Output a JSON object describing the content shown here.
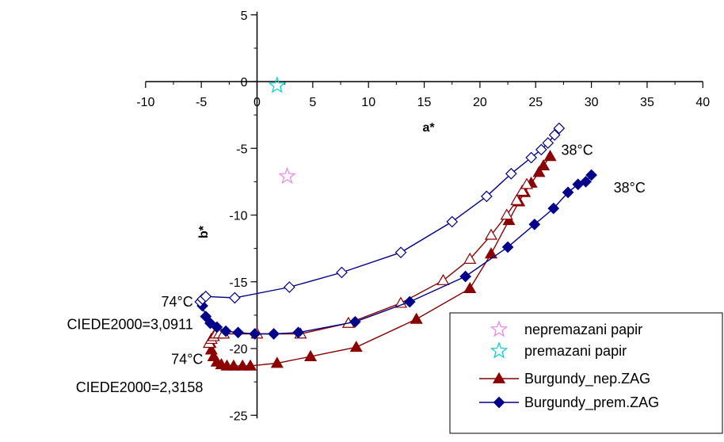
{
  "chart_data": {
    "type": "scatter",
    "xlabel": "a*",
    "ylabel": "b*",
    "xlim": [
      -10,
      40
    ],
    "ylim": [
      -25,
      5
    ],
    "x_ticks": [
      -10,
      -5,
      0,
      5,
      10,
      15,
      20,
      25,
      30,
      35,
      40
    ],
    "y_ticks": [
      5,
      0,
      -5,
      -10,
      -15,
      -20,
      -25
    ],
    "x_tick_labels": [
      "-10",
      "-5",
      "0",
      "5",
      "10",
      "15",
      "20",
      "25",
      "30",
      "35",
      "40"
    ],
    "y_tick_labels": [
      "5",
      "0",
      "-5",
      "-10",
      "-15",
      "-20",
      "-25"
    ],
    "grid": false,
    "legend_position": "bottom-right",
    "colors": {
      "burgundy_nep": "#8b0000",
      "burgundy_prem": "#00008b",
      "nepremazani": "#ee82ee",
      "premazani": "#00ced1"
    },
    "legend": [
      {
        "label": "nepremazani papir",
        "marker": "star",
        "color": "#ee82ee"
      },
      {
        "label": "premazani papir",
        "marker": "star",
        "color": "#00ced1"
      },
      {
        "label": "Burgundy_nep.ZAG",
        "marker": "triangle",
        "color": "#8b0000"
      },
      {
        "label": "Burgundy_prem.ZAG",
        "marker": "diamond",
        "color": "#00008b"
      }
    ],
    "series": [
      {
        "name": "nepremazani papir",
        "marker": "star",
        "color": "#ee82ee",
        "x": [
          2.7
        ],
        "y": [
          -7.1
        ]
      },
      {
        "name": "premazani papir",
        "marker": "star",
        "color": "#00ced1",
        "x": [
          1.8
        ],
        "y": [
          -0.3
        ]
      },
      {
        "name": "Burgundy_nep.ZAG",
        "marker": "triangle",
        "filled": true,
        "color": "#8b0000",
        "x": [
          26.3,
          25.7,
          25.3,
          24.6,
          24.0,
          23.5,
          22.6,
          21.0,
          19.1,
          14.3,
          8.9,
          4.8,
          1.8,
          -0.6,
          -1.3,
          -2.1,
          -2.7,
          -3.2,
          -3.6,
          -3.9,
          -4.1,
          -4.2
        ],
        "y": [
          -5.6,
          -6.3,
          -6.8,
          -7.6,
          -8.3,
          -9.0,
          -10.4,
          -12.9,
          -15.5,
          -17.8,
          -19.9,
          -20.6,
          -21.1,
          -21.3,
          -21.3,
          -21.3,
          -21.3,
          -21.2,
          -21.0,
          -20.6,
          -20.1,
          -19.6
        ]
      },
      {
        "name": "Burgundy_nep.ZAG (74°C)",
        "marker": "triangle",
        "filled": false,
        "color": "#8b0000",
        "x": [
          -4.3,
          -4.1,
          -3.9,
          -3.7,
          -3.4,
          -3.0,
          0.0,
          3.9,
          8.2,
          12.9,
          16.7,
          19.1,
          21.0,
          22.4,
          23.3,
          23.8,
          24.2
        ],
        "y": [
          -19.6,
          -19.3,
          -19.1,
          -18.9,
          -18.9,
          -18.9,
          -18.9,
          -18.9,
          -18.1,
          -16.6,
          -14.9,
          -13.3,
          -11.5,
          -10.0,
          -8.9,
          -8.2,
          -7.7
        ]
      },
      {
        "name": "Burgundy_prem.ZAG",
        "marker": "diamond",
        "filled": true,
        "color": "#00008b",
        "x": [
          30.0,
          29.5,
          28.8,
          27.9,
          26.6,
          24.9,
          22.5,
          18.7,
          13.7,
          8.8,
          3.7,
          1.5,
          -0.2,
          -1.7,
          -2.8,
          -3.6,
          -4.2,
          -4.6,
          -4.9
        ],
        "y": [
          -7.0,
          -7.5,
          -7.7,
          -8.3,
          -9.5,
          -10.7,
          -12.4,
          -14.6,
          -16.5,
          -18.0,
          -18.8,
          -18.9,
          -18.9,
          -18.8,
          -18.7,
          -18.4,
          -18.1,
          -17.6,
          -16.8
        ]
      },
      {
        "name": "Burgundy_prem.ZAG (74°C)",
        "marker": "diamond",
        "filled": false,
        "color": "#00008b",
        "x": [
          -5.1,
          -4.9,
          -4.6,
          -2.0,
          2.9,
          7.6,
          12.9,
          17.5,
          20.6,
          22.8,
          24.6,
          25.5,
          26.1,
          26.7,
          27.1
        ],
        "y": [
          -16.5,
          -16.3,
          -16.1,
          -16.2,
          -15.4,
          -14.3,
          -12.8,
          -10.5,
          -8.6,
          -6.9,
          -5.7,
          -5.1,
          -4.6,
          -4.0,
          -3.5
        ]
      }
    ],
    "annotations": [
      {
        "text": "38°C",
        "x": 26.3,
        "y": -5.6,
        "anchor": "right"
      },
      {
        "text": "38°C",
        "x": 30.0,
        "y": -7.0,
        "anchor": "below-right"
      },
      {
        "text": "74°C",
        "x": -5.1,
        "y": -16.5,
        "anchor": "left"
      },
      {
        "text": "CIEDE2000=3,0911",
        "x": -5.1,
        "y": -18.2,
        "anchor": "left"
      },
      {
        "text": "74°C",
        "x": -4.2,
        "y": -20.8,
        "anchor": "left"
      },
      {
        "text": "CIEDE2000=2,3158",
        "x": -4.2,
        "y": -22.9,
        "anchor": "left"
      }
    ]
  }
}
